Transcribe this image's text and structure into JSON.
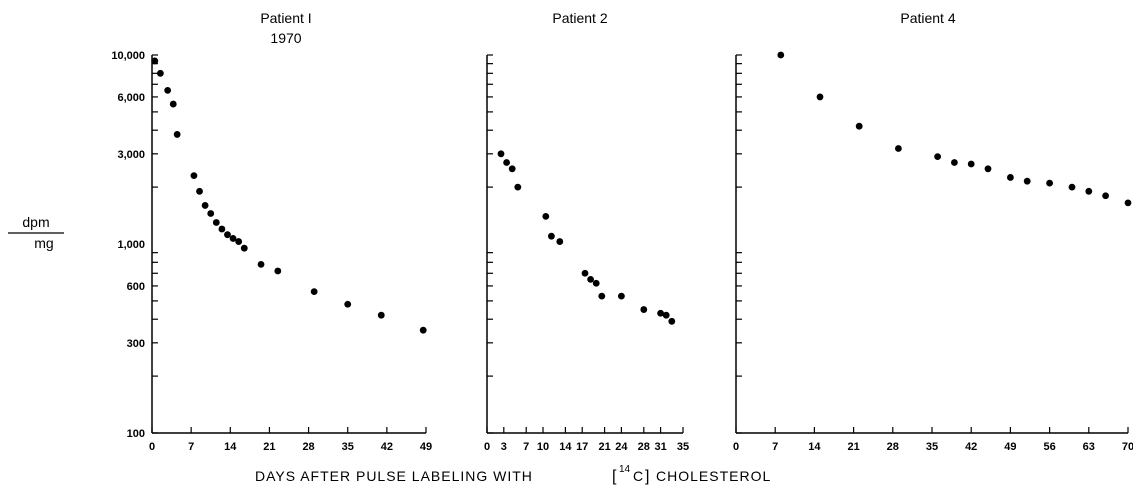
{
  "figure": {
    "xlabel_prefix": "DAYS AFTER PULSE LABELING WITH",
    "xlabel_isotope": "14",
    "xlabel_element": "C",
    "xlabel_suffix": "CHOLESTEROL",
    "ylabel_top": "dpm",
    "ylabel_bottom": "mg"
  },
  "chart_data": [
    {
      "type": "scatter",
      "title": "Patient I",
      "subtitle": "1970",
      "y_scale": "log",
      "ylim": [
        100,
        10000
      ],
      "y_ticks": [
        100,
        300,
        600,
        1000,
        3000,
        6000,
        10000
      ],
      "y_tick_labels": [
        "100",
        "300",
        "600",
        "1,000",
        "3,000",
        "6,000",
        "10,000"
      ],
      "xlim": [
        0,
        49
      ],
      "x_ticks": [
        0,
        7,
        14,
        21,
        28,
        35,
        42,
        49
      ],
      "x_tick_labels": [
        "0",
        "7",
        "14",
        "21",
        "28",
        "35",
        "42",
        "49"
      ],
      "x": [
        0.5,
        1.5,
        2.8,
        3.8,
        4.5,
        7.5,
        8.5,
        9.5,
        10.5,
        11.5,
        12.5,
        13.5,
        14.5,
        15.5,
        16.5,
        19.5,
        22.5,
        29,
        35,
        41,
        48.5
      ],
      "y": [
        9300,
        8000,
        6500,
        5500,
        3800,
        2300,
        1900,
        1600,
        1450,
        1300,
        1200,
        1120,
        1070,
        1030,
        950,
        780,
        720,
        560,
        480,
        420,
        350
      ]
    },
    {
      "type": "scatter",
      "title": "Patient 2",
      "y_scale": "log",
      "ylim": [
        100,
        10000
      ],
      "xlim": [
        0,
        35
      ],
      "x_ticks": [
        0,
        3,
        7,
        10,
        14,
        17,
        21,
        24,
        28,
        31,
        35
      ],
      "x_tick_labels": [
        "0",
        "3",
        "7",
        "10",
        "14",
        "17",
        "21",
        "24",
        "28",
        "31",
        "35"
      ],
      "x": [
        2.5,
        3.5,
        4.5,
        5.5,
        10.5,
        11.5,
        13,
        17.5,
        18.5,
        19.5,
        20.5,
        24,
        28,
        31,
        32,
        33
      ],
      "y": [
        3000,
        2700,
        2500,
        2000,
        1400,
        1100,
        1030,
        700,
        650,
        620,
        530,
        530,
        450,
        430,
        420,
        390
      ]
    },
    {
      "type": "scatter",
      "title": "Patient 4",
      "y_scale": "log",
      "ylim": [
        100,
        10000
      ],
      "xlim": [
        0,
        70
      ],
      "x_ticks": [
        0,
        7,
        14,
        21,
        28,
        35,
        42,
        49,
        56,
        63,
        70
      ],
      "x_tick_labels": [
        "0",
        "7",
        "14",
        "21",
        "28",
        "35",
        "42",
        "49",
        "56",
        "63",
        "70"
      ],
      "x": [
        8,
        15,
        22,
        29,
        36,
        39,
        42,
        45,
        49,
        52,
        56,
        60,
        63,
        66,
        70
      ],
      "y": [
        10000,
        6000,
        4200,
        3200,
        2900,
        2700,
        2650,
        2500,
        2250,
        2150,
        2100,
        2000,
        1900,
        1800,
        1650
      ]
    }
  ]
}
